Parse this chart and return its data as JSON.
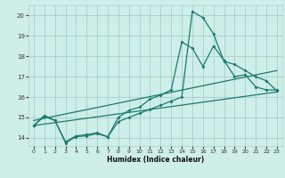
{
  "xlabel": "Humidex (Indice chaleur)",
  "bg_color": "#ceeee8",
  "line_color": "#1a7a6e",
  "grid_color": "#aad4cc",
  "xlim": [
    -0.5,
    23.5
  ],
  "ylim": [
    13.6,
    20.5
  ],
  "xticks": [
    0,
    1,
    2,
    3,
    4,
    5,
    6,
    7,
    8,
    9,
    10,
    11,
    12,
    13,
    14,
    15,
    16,
    17,
    18,
    19,
    20,
    21,
    22,
    23
  ],
  "yticks": [
    14,
    15,
    16,
    17,
    18,
    19,
    20
  ],
  "curve1_x": [
    0,
    1,
    2,
    3,
    4,
    5,
    6,
    7,
    8,
    9,
    10,
    11,
    12,
    13,
    14,
    15,
    16,
    17,
    18,
    19,
    20,
    21,
    22,
    23
  ],
  "curve1_y": [
    14.6,
    15.05,
    14.85,
    13.75,
    14.05,
    14.1,
    14.2,
    14.05,
    14.8,
    15.0,
    15.2,
    15.4,
    15.6,
    15.8,
    16.0,
    20.2,
    19.9,
    19.1,
    17.75,
    17.6,
    17.3,
    17.0,
    16.8,
    16.3
  ],
  "curve2_x": [
    0,
    1,
    2,
    3,
    4,
    5,
    6,
    7,
    8,
    9,
    10,
    11,
    12,
    13,
    14,
    15,
    16,
    17,
    18,
    19,
    20,
    21,
    22,
    23
  ],
  "curve2_y": [
    14.6,
    15.1,
    14.85,
    13.8,
    14.1,
    14.15,
    14.25,
    14.05,
    15.0,
    15.35,
    15.5,
    15.9,
    16.1,
    16.35,
    18.7,
    18.4,
    17.5,
    18.5,
    17.8,
    17.0,
    17.1,
    16.5,
    16.35,
    16.35
  ],
  "trend1_x": [
    0,
    23
  ],
  "trend1_y": [
    14.85,
    17.3
  ],
  "trend2_x": [
    0,
    23
  ],
  "trend2_y": [
    14.6,
    16.25
  ]
}
